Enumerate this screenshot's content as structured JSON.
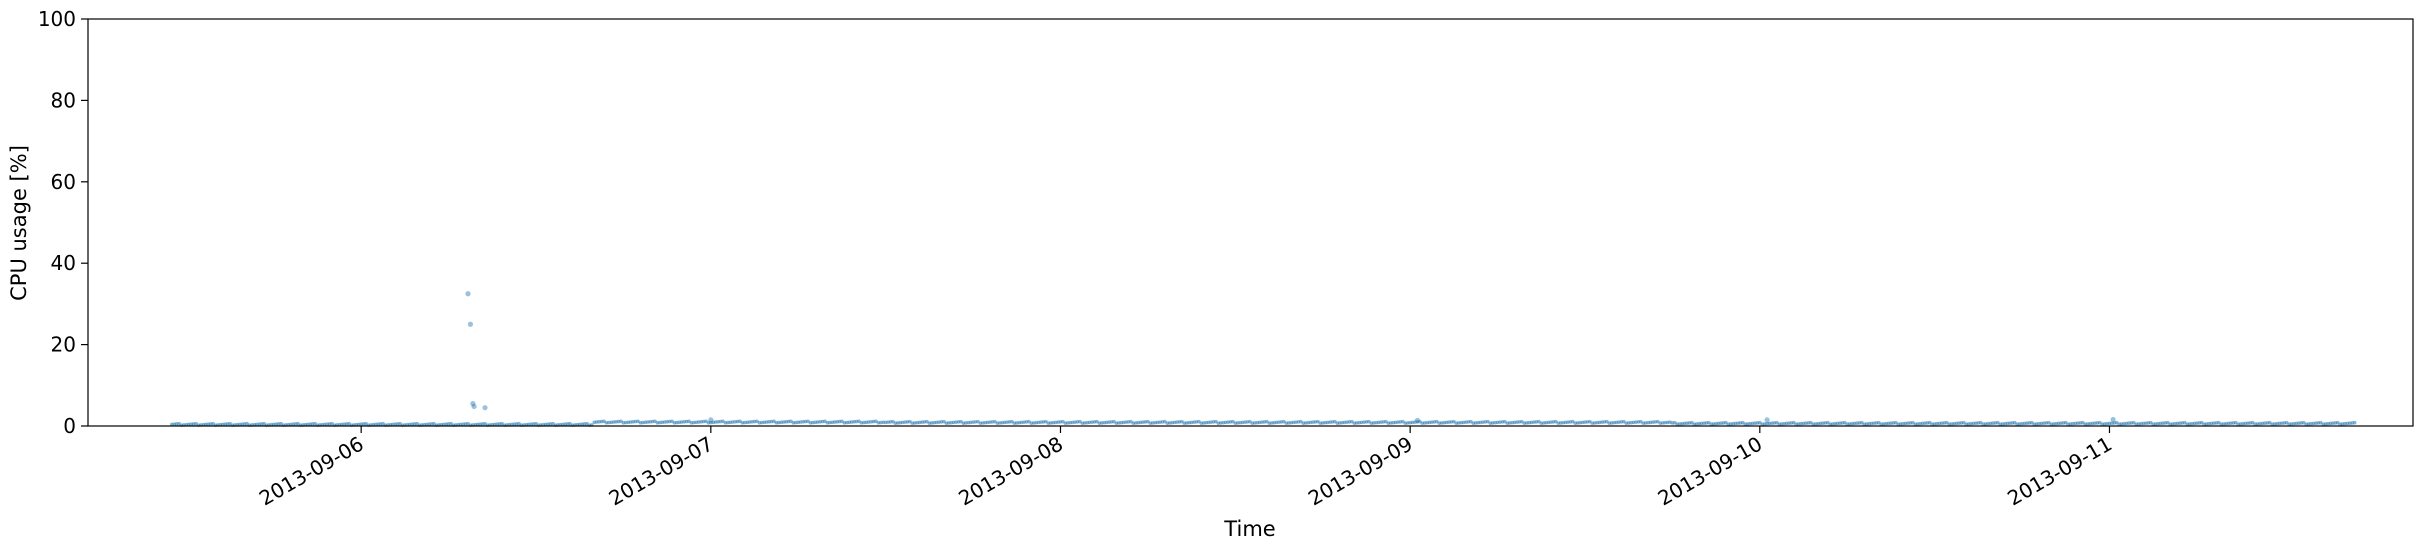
{
  "chart_data": {
    "type": "scatter",
    "title": "",
    "xlabel": "Time",
    "ylabel": "CPU usage [%]",
    "ylim": [
      0,
      100
    ],
    "yticks": [
      0,
      20,
      40,
      60,
      80,
      100
    ],
    "xlim": [
      "2013-09-05T05:15",
      "2013-09-11T20:50"
    ],
    "xticks": [
      "2013-09-06",
      "2013-09-07",
      "2013-09-08",
      "2013-09-09",
      "2013-09-10",
      "2013-09-11"
    ],
    "grid": false,
    "legend": "none",
    "marker_color": "#1f77b4",
    "series": [
      {
        "segments": [
          {
            "start": "2013-09-05T11:00",
            "end": "2013-09-06T16:00",
            "step_min": 10,
            "y": 0.2
          },
          {
            "start": "2013-09-06T16:00",
            "end": "2013-09-07T12:00",
            "step_min": 10,
            "y": 0.8
          },
          {
            "start": "2013-09-07T12:00",
            "end": "2013-09-09T18:00",
            "step_min": 10,
            "y": 0.7
          },
          {
            "start": "2013-09-09T18:00",
            "end": "2013-09-11T17:00",
            "step_min": 10,
            "y": 0.45
          }
        ],
        "outliers": [
          {
            "x": "2013-09-06T07:20",
            "y": 32.5
          },
          {
            "x": "2013-09-06T07:30",
            "y": 25.0
          },
          {
            "x": "2013-09-06T07:40",
            "y": 5.5
          },
          {
            "x": "2013-09-06T07:45",
            "y": 4.8
          },
          {
            "x": "2013-09-06T08:30",
            "y": 4.5
          },
          {
            "x": "2013-09-07T00:00",
            "y": 1.5
          },
          {
            "x": "2013-09-09T00:30",
            "y": 1.4
          },
          {
            "x": "2013-09-10T00:30",
            "y": 1.5
          },
          {
            "x": "2013-09-11T00:15",
            "y": 1.6
          }
        ]
      }
    ]
  }
}
